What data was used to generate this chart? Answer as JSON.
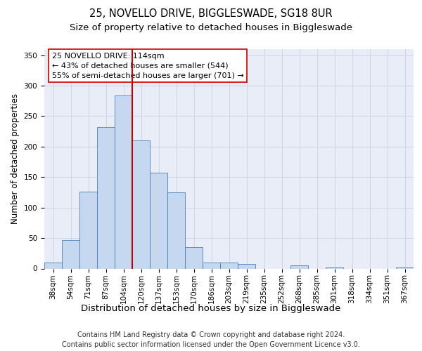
{
  "title1": "25, NOVELLO DRIVE, BIGGLESWADE, SG18 8UR",
  "title2": "Size of property relative to detached houses in Biggleswade",
  "xlabel": "Distribution of detached houses by size in Biggleswade",
  "ylabel": "Number of detached properties",
  "footnote1": "Contains HM Land Registry data © Crown copyright and database right 2024.",
  "footnote2": "Contains public sector information licensed under the Open Government Licence v3.0.",
  "annotation_line1": "25 NOVELLO DRIVE: 114sqm",
  "annotation_line2": "← 43% of detached houses are smaller (544)",
  "annotation_line3": "55% of semi-detached houses are larger (701) →",
  "bar_labels": [
    "38sqm",
    "54sqm",
    "71sqm",
    "87sqm",
    "104sqm",
    "120sqm",
    "137sqm",
    "153sqm",
    "170sqm",
    "186sqm",
    "203sqm",
    "219sqm",
    "235sqm",
    "252sqm",
    "268sqm",
    "285sqm",
    "301sqm",
    "318sqm",
    "334sqm",
    "351sqm",
    "367sqm"
  ],
  "bar_values": [
    10,
    47,
    126,
    232,
    284,
    210,
    157,
    125,
    35,
    10,
    10,
    8,
    0,
    0,
    5,
    0,
    2,
    0,
    0,
    0,
    2
  ],
  "bar_color": "#c5d8f0",
  "bar_edge_color": "#4a7eb5",
  "vline_color": "#cc0000",
  "vline_x_index": 4.5,
  "ylim": [
    0,
    360
  ],
  "yticks": [
    0,
    50,
    100,
    150,
    200,
    250,
    300,
    350
  ],
  "grid_color": "#cdd5e5",
  "background_color": "#e8edf8",
  "annotation_box_facecolor": "#ffffff",
  "annotation_box_edgecolor": "#cc0000",
  "title1_fontsize": 10.5,
  "title2_fontsize": 9.5,
  "ylabel_fontsize": 8.5,
  "xlabel_fontsize": 9.5,
  "tick_fontsize": 7.5,
  "annotation_fontsize": 8,
  "footnote_fontsize": 7
}
